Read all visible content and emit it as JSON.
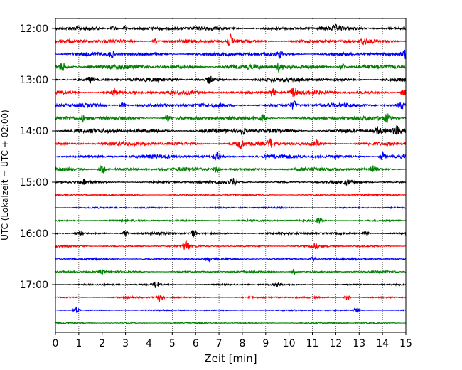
{
  "chart_data": {
    "type": "line",
    "title": "",
    "xlabel": "Zeit  [min]",
    "ylabel": "UTC (Lokalzeit = UTC + 02:00)",
    "xlim": [
      0,
      15
    ],
    "x_ticks": [
      "0",
      "1",
      "2",
      "3",
      "4",
      "5",
      "6",
      "7",
      "8",
      "9",
      "10",
      "11",
      "12",
      "13",
      "14",
      "15"
    ],
    "y_tick_labels": [
      "12:00",
      "13:00",
      "14:00",
      "15:00",
      "16:00",
      "17:00"
    ],
    "grid": "vertical-dotted",
    "row_interval_minutes": 15,
    "colors": [
      "#000000",
      "#ff0000",
      "#0000ff",
      "#008000"
    ],
    "rows": [
      {
        "time": "12:00",
        "color": "#000000",
        "amp": 3.0,
        "events": [
          [
            2.5,
            4
          ],
          [
            3.0,
            4
          ],
          [
            12.0,
            3
          ]
        ]
      },
      {
        "time": "12:15",
        "color": "#ff0000",
        "amp": 3.0,
        "events": [
          [
            7.5,
            8
          ],
          [
            4.3,
            4
          ],
          [
            13.2,
            4
          ]
        ]
      },
      {
        "time": "12:30",
        "color": "#0000ff",
        "amp": 3.0,
        "events": [
          [
            2.4,
            4
          ],
          [
            9.6,
            4
          ],
          [
            15.0,
            5
          ]
        ]
      },
      {
        "time": "12:45",
        "color": "#008000",
        "amp": 3.5,
        "events": [
          [
            0.3,
            5
          ],
          [
            9.6,
            6
          ],
          [
            12.3,
            5
          ]
        ]
      },
      {
        "time": "13:00",
        "color": "#000000",
        "amp": 3.0,
        "events": [
          [
            6.6,
            5
          ],
          [
            10.5,
            3
          ],
          [
            1.5,
            4
          ]
        ]
      },
      {
        "time": "13:15",
        "color": "#ff0000",
        "amp": 3.0,
        "events": [
          [
            2.5,
            6
          ],
          [
            9.3,
            6
          ],
          [
            10.2,
            7
          ],
          [
            14.9,
            5
          ]
        ]
      },
      {
        "time": "13:30",
        "color": "#0000ff",
        "amp": 3.0,
        "events": [
          [
            10.2,
            6
          ],
          [
            14.8,
            5
          ],
          [
            2.9,
            4
          ]
        ]
      },
      {
        "time": "13:45",
        "color": "#008000",
        "amp": 3.0,
        "events": [
          [
            1.2,
            4
          ],
          [
            4.8,
            4
          ],
          [
            8.9,
            5
          ],
          [
            14.2,
            5
          ]
        ]
      },
      {
        "time": "14:00",
        "color": "#000000",
        "amp": 3.5,
        "events": [
          [
            8.0,
            5
          ],
          [
            13.8,
            5
          ],
          [
            14.6,
            5
          ]
        ]
      },
      {
        "time": "14:15",
        "color": "#ff0000",
        "amp": 3.0,
        "events": [
          [
            7.9,
            7
          ],
          [
            9.2,
            6
          ],
          [
            11.2,
            4
          ]
        ]
      },
      {
        "time": "14:30",
        "color": "#0000ff",
        "amp": 3.0,
        "events": [
          [
            6.9,
            5
          ],
          [
            14.0,
            6
          ]
        ]
      },
      {
        "time": "14:45",
        "color": "#008000",
        "amp": 3.0,
        "events": [
          [
            2.0,
            6
          ],
          [
            6.9,
            5
          ],
          [
            13.6,
            4
          ]
        ]
      },
      {
        "time": "15:00",
        "color": "#000000",
        "amp": 2.0,
        "events": [
          [
            7.6,
            6
          ],
          [
            1.2,
            3
          ],
          [
            12.5,
            3
          ]
        ]
      },
      {
        "time": "15:15",
        "color": "#ff0000",
        "amp": 1.2,
        "events": []
      },
      {
        "time": "15:30",
        "color": "#0000ff",
        "amp": 1.2,
        "events": []
      },
      {
        "time": "15:45",
        "color": "#008000",
        "amp": 1.5,
        "events": [
          [
            11.3,
            4
          ]
        ]
      },
      {
        "time": "16:00",
        "color": "#000000",
        "amp": 1.8,
        "events": [
          [
            1.0,
            3
          ],
          [
            3.0,
            3
          ],
          [
            5.9,
            5
          ],
          [
            13.3,
            3
          ]
        ]
      },
      {
        "time": "16:15",
        "color": "#ff0000",
        "amp": 1.5,
        "events": [
          [
            5.6,
            8
          ],
          [
            11.1,
            4
          ]
        ]
      },
      {
        "time": "16:30",
        "color": "#0000ff",
        "amp": 1.5,
        "events": [
          [
            6.5,
            3
          ],
          [
            11.0,
            3
          ]
        ]
      },
      {
        "time": "16:45",
        "color": "#008000",
        "amp": 1.5,
        "events": [
          [
            2.0,
            3
          ],
          [
            10.2,
            3
          ]
        ]
      },
      {
        "time": "17:00",
        "color": "#000000",
        "amp": 1.3,
        "events": [
          [
            4.3,
            5
          ],
          [
            9.5,
            3
          ]
        ]
      },
      {
        "time": "17:15",
        "color": "#ff0000",
        "amp": 1.3,
        "events": [
          [
            4.5,
            6
          ],
          [
            12.5,
            4
          ]
        ]
      },
      {
        "time": "17:30",
        "color": "#0000ff",
        "amp": 1.0,
        "events": [
          [
            0.9,
            5
          ],
          [
            12.9,
            3
          ]
        ]
      },
      {
        "time": "17:45",
        "color": "#008000",
        "amp": 1.0,
        "events": []
      }
    ]
  }
}
